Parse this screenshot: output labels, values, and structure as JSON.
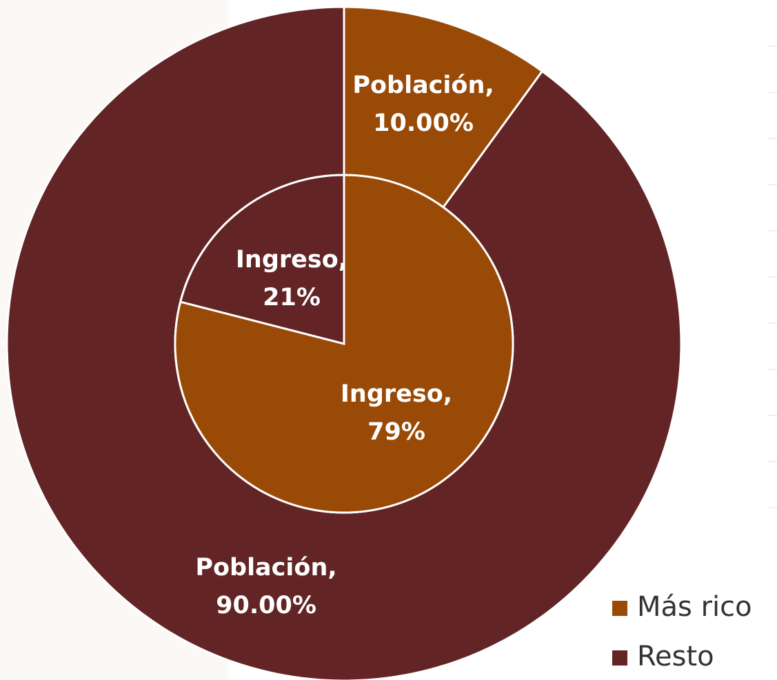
{
  "chart_data": {
    "type": "pie",
    "categories": [
      "Más rico",
      "Resto"
    ],
    "colors": [
      "#994a07",
      "#632426"
    ],
    "series": [
      {
        "name": "Población,",
        "values": [
          10,
          90
        ],
        "value_labels": [
          "10.00%",
          "90.00%"
        ]
      },
      {
        "name": "Ingreso,",
        "values": [
          79,
          21
        ],
        "value_labels": [
          "79%",
          "21%"
        ]
      }
    ],
    "legend": "bottom-right"
  }
}
